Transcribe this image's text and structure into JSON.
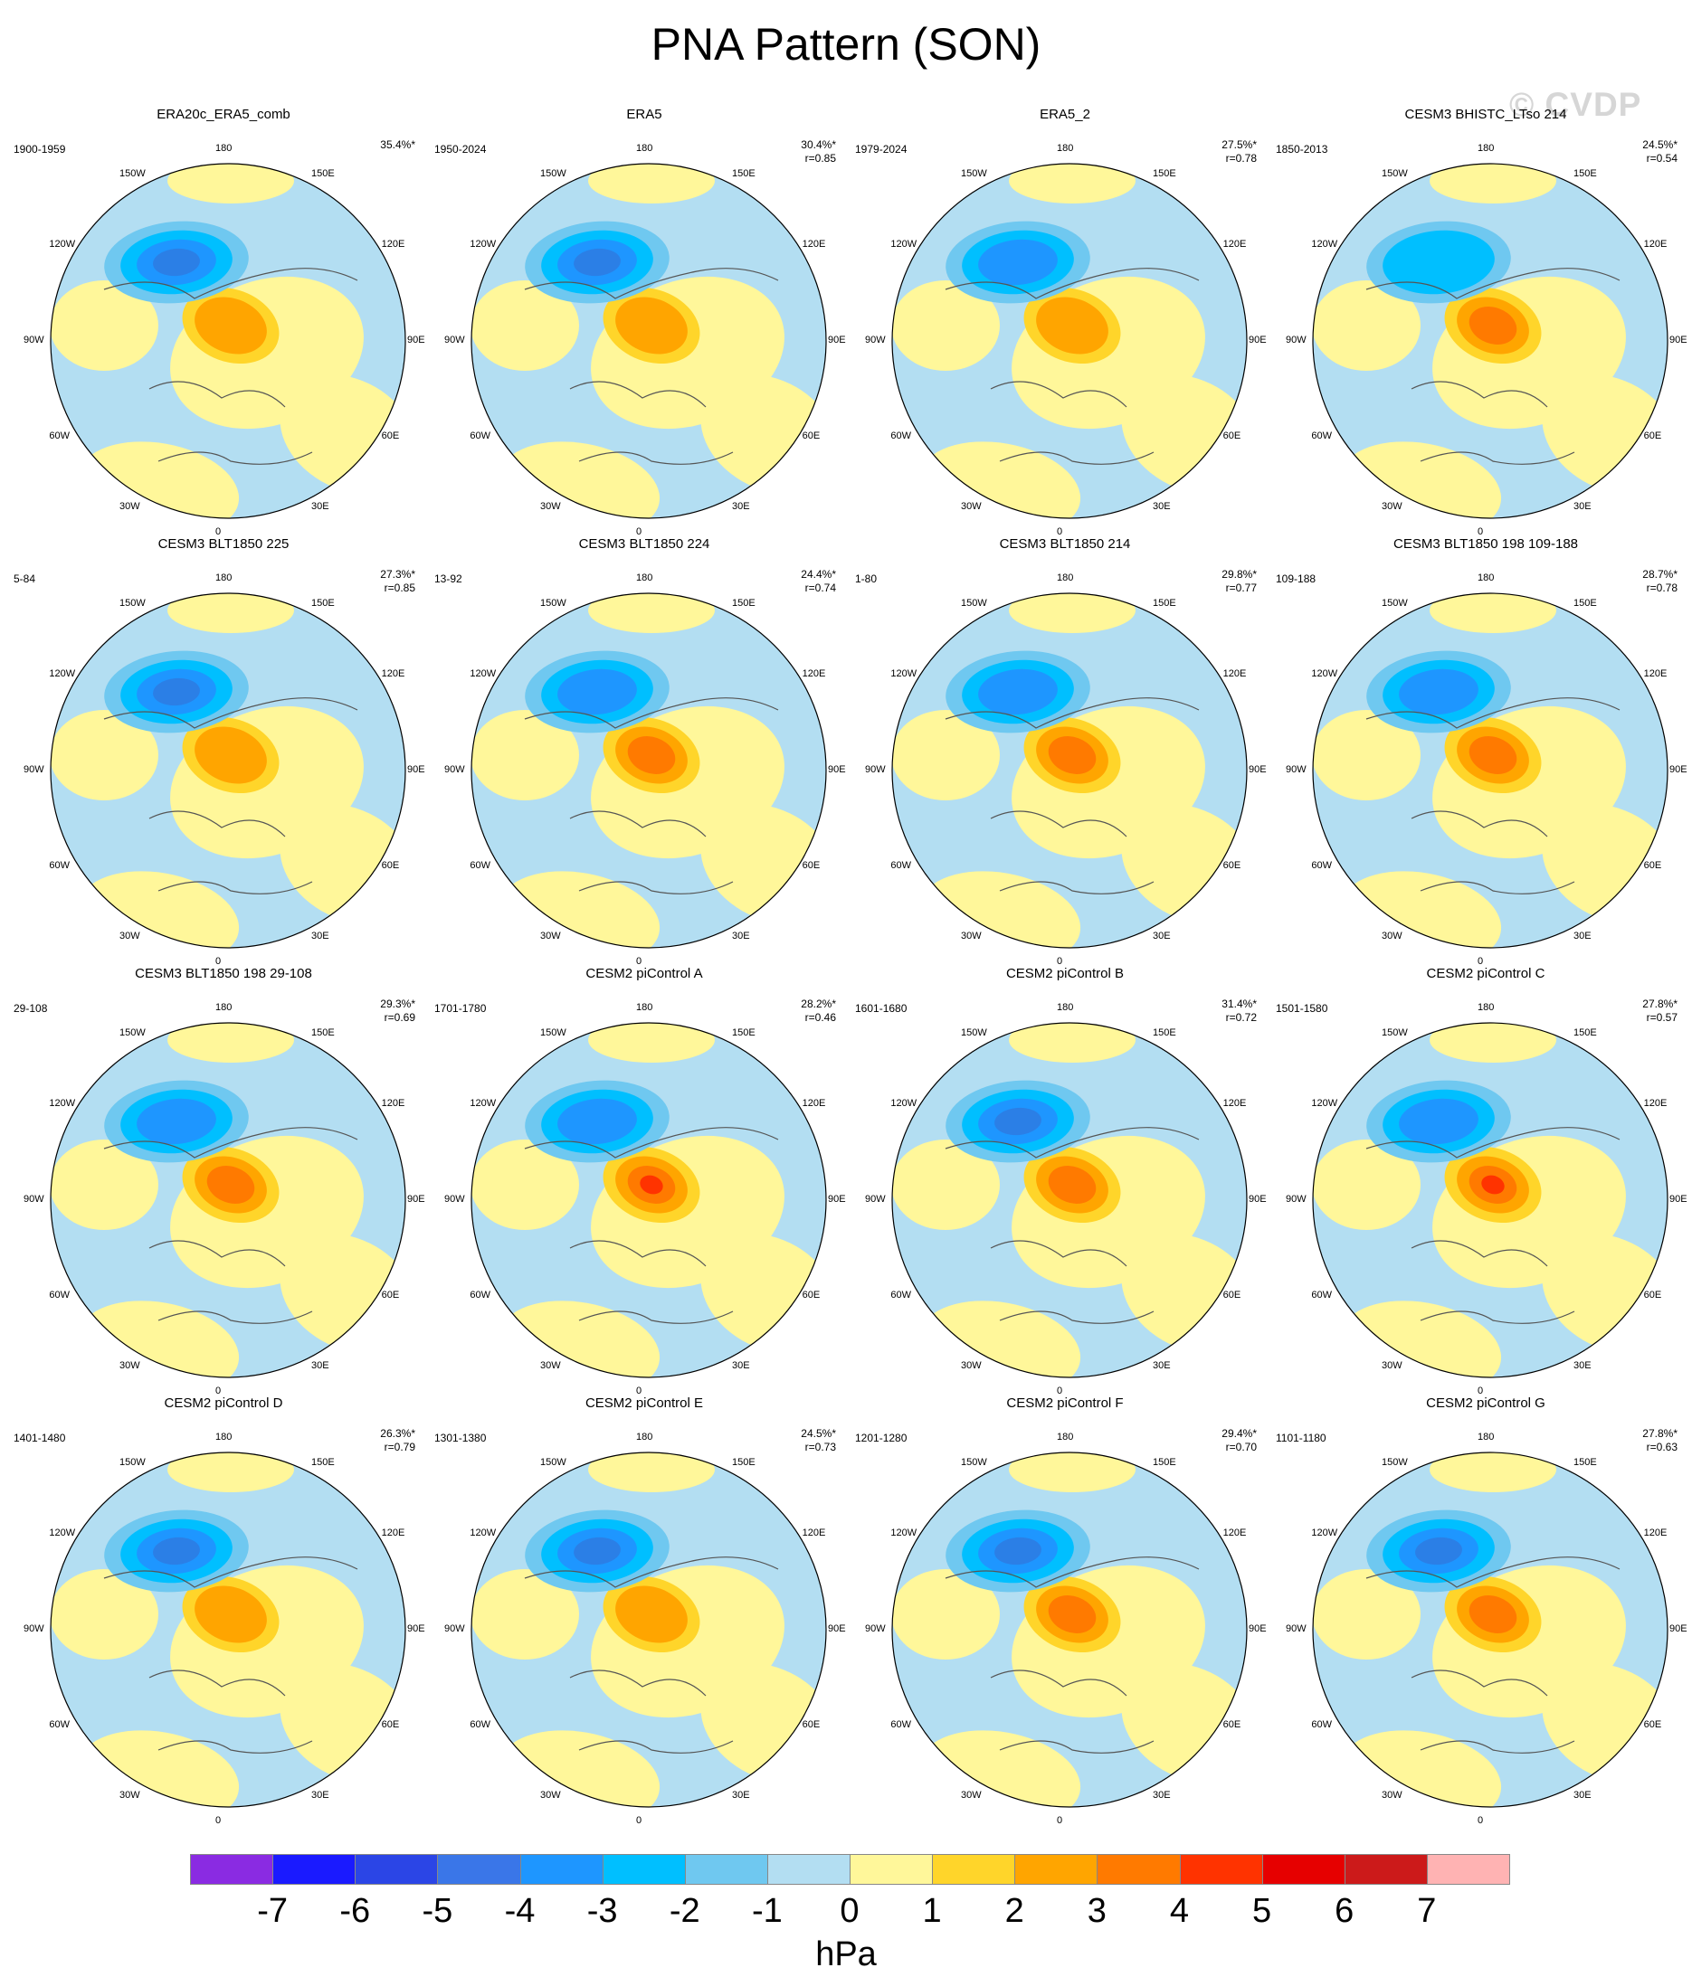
{
  "title": "PNA Pattern (SON)",
  "watermark": "© CVDP",
  "lon_labels": [
    "180",
    "150E",
    "120E",
    "90E",
    "60E",
    "30E",
    "0",
    "30W",
    "60W",
    "90W",
    "120W",
    "150W"
  ],
  "panels": [
    {
      "title": "ERA20c_ERA5_comb",
      "period": "1900-1959",
      "variance": "35.4%*",
      "r": ""
    },
    {
      "title": "ERA5",
      "period": "1950-2024",
      "variance": "30.4%*",
      "r": "r=0.85"
    },
    {
      "title": "ERA5_2",
      "period": "1979-2024",
      "variance": "27.5%*",
      "r": "r=0.78"
    },
    {
      "title": "CESM3 BHISTC_LTso 214",
      "period": "1850-2013",
      "variance": "24.5%*",
      "r": "r=0.54"
    },
    {
      "title": "CESM3 BLT1850 225",
      "period": "5-84",
      "variance": "27.3%*",
      "r": "r=0.85"
    },
    {
      "title": "CESM3 BLT1850 224",
      "period": "13-92",
      "variance": "24.4%*",
      "r": "r=0.74"
    },
    {
      "title": "CESM3 BLT1850 214",
      "period": "1-80",
      "variance": "29.8%*",
      "r": "r=0.77"
    },
    {
      "title": "CESM3 BLT1850 198 109-188",
      "period": "109-188",
      "variance": "28.7%*",
      "r": "r=0.78"
    },
    {
      "title": "CESM3 BLT1850 198 29-108",
      "period": "29-108",
      "variance": "29.3%*",
      "r": "r=0.69"
    },
    {
      "title": "CESM2 piControl A",
      "period": "1701-1780",
      "variance": "28.2%*",
      "r": "r=0.46"
    },
    {
      "title": "CESM2 piControl B",
      "period": "1601-1680",
      "variance": "31.4%*",
      "r": "r=0.72"
    },
    {
      "title": "CESM2 piControl C",
      "period": "1501-1580",
      "variance": "27.8%*",
      "r": "r=0.57"
    },
    {
      "title": "CESM2 piControl D",
      "period": "1401-1480",
      "variance": "26.3%*",
      "r": "r=0.79"
    },
    {
      "title": "CESM2 piControl E",
      "period": "1301-1380",
      "variance": "24.5%*",
      "r": "r=0.73"
    },
    {
      "title": "CESM2 piControl F",
      "period": "1201-1280",
      "variance": "29.4%*",
      "r": "r=0.70"
    },
    {
      "title": "CESM2 piControl G",
      "period": "1101-1180",
      "variance": "27.8%*",
      "r": "r=0.63"
    }
  ],
  "colorbar": {
    "colors": [
      "#8a2be2",
      "#1a1aff",
      "#2b45e6",
      "#3a76e8",
      "#1e96ff",
      "#00bfff",
      "#6fc8f0",
      "#b3def2",
      "#fff79a",
      "#ffd52a",
      "#ffa500",
      "#ff7a00",
      "#ff3300",
      "#e60000",
      "#cc1a1a",
      "#ffb3b3"
    ],
    "labels": [
      "-7",
      "-6",
      "-5",
      "-4",
      "-3",
      "-2",
      "-1",
      "0",
      "1",
      "2",
      "3",
      "4",
      "5",
      "6",
      "7"
    ],
    "units": "hPa"
  },
  "map_colors": {
    "neg1": "#b3def2",
    "neg2": "#6fc8f0",
    "neg3": "#00bfff",
    "neg4": "#1e96ff",
    "neg5": "#2b7fe6",
    "pos1": "#fff79a",
    "pos2": "#ffd52a",
    "pos3": "#ffa500",
    "pos4": "#ff7a00",
    "pos5": "#ff3300",
    "coast": "#555555"
  }
}
